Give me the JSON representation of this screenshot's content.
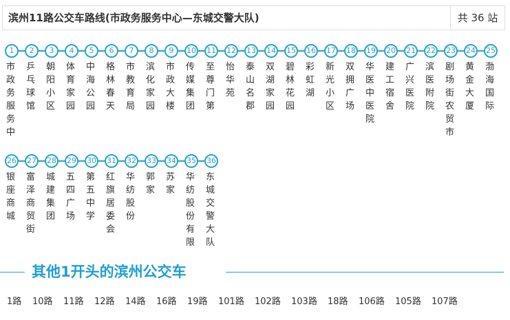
{
  "header": {
    "title": "滨州11路公交车路线(市政务服务中心—东城交警大队)",
    "count": "共 36 站"
  },
  "stops": [
    {
      "number": 1,
      "name": "市政务服务中"
    },
    {
      "number": 2,
      "name": "乒乓球馆"
    },
    {
      "number": 3,
      "name": "朝阳小区"
    },
    {
      "number": 4,
      "name": "体育家园"
    },
    {
      "number": 5,
      "name": "中海公园"
    },
    {
      "number": 6,
      "name": "格林春天"
    },
    {
      "number": 7,
      "name": "市教育局"
    },
    {
      "number": 8,
      "name": "滨化家园"
    },
    {
      "number": 9,
      "name": "市政大楼"
    },
    {
      "number": 10,
      "name": "传媒集团"
    },
    {
      "number": 11,
      "name": "至尊门第"
    },
    {
      "number": 12,
      "name": "怡华苑"
    },
    {
      "number": 13,
      "name": "泰山名郡"
    },
    {
      "number": 14,
      "name": "双湖家园"
    },
    {
      "number": 15,
      "name": "碧林花园"
    },
    {
      "number": 16,
      "name": "彩虹湖"
    },
    {
      "number": 17,
      "name": "新光小区"
    },
    {
      "number": 18,
      "name": "双拥广场"
    },
    {
      "number": 19,
      "name": "华医中医院"
    },
    {
      "number": 20,
      "name": "建工宿舍"
    },
    {
      "number": 21,
      "name": "广兴医院"
    },
    {
      "number": 22,
      "name": "滨医附院"
    },
    {
      "number": 23,
      "name": "剧场街农贸市"
    },
    {
      "number": 24,
      "name": "黄金大厦"
    },
    {
      "number": 25,
      "name": "渤海国际"
    },
    {
      "number": 26,
      "name": "银座商城"
    },
    {
      "number": 27,
      "name": "富泽商贸街"
    },
    {
      "number": 28,
      "name": "城建集团"
    },
    {
      "number": 29,
      "name": "五四广场"
    },
    {
      "number": 30,
      "name": "第五中学"
    },
    {
      "number": 31,
      "name": "红旗居委会"
    },
    {
      "number": 32,
      "name": "华纺股份"
    },
    {
      "number": 33,
      "name": "郭家"
    },
    {
      "number": 34,
      "name": "苏家"
    },
    {
      "number": 35,
      "name": "华纺股份有限"
    },
    {
      "number": 36,
      "name": "东城交警大队"
    }
  ],
  "other": {
    "title": "其他1开头的滨州公交车",
    "links": [
      "1路",
      "10路",
      "11路",
      "12路",
      "14路",
      "16路",
      "19路",
      "101路",
      "102路",
      "103路",
      "18路",
      "106路",
      "105路",
      "107路"
    ]
  }
}
